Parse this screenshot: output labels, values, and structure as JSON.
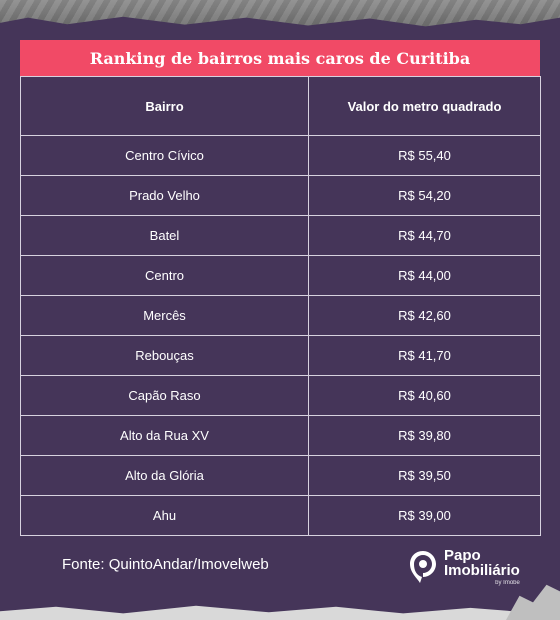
{
  "chart_data": {
    "type": "table",
    "title": "Ranking de bairros mais caros de Curitiba",
    "columns": [
      "Bairro",
      "Valor do metro quadrado"
    ],
    "rows": [
      {
        "bairro": "Centro Cívico",
        "valor": "R$ 55,40"
      },
      {
        "bairro": "Prado Velho",
        "valor": "R$ 54,20"
      },
      {
        "bairro": "Batel",
        "valor": "R$ 44,70"
      },
      {
        "bairro": "Centro",
        "valor": "R$ 44,00"
      },
      {
        "bairro": "Mercês",
        "valor": "R$ 42,60"
      },
      {
        "bairro": "Rebouças",
        "valor": "R$ 41,70"
      },
      {
        "bairro": "Capão Raso",
        "valor": "R$ 40,60"
      },
      {
        "bairro": "Alto da Rua XV",
        "valor": "R$ 39,80"
      },
      {
        "bairro": "Alto da Glória",
        "valor": "R$ 39,50"
      },
      {
        "bairro": "Ahu",
        "valor": "R$ 39,00"
      }
    ]
  },
  "source": "Fonte: QuintoAndar/Imovelweb",
  "logo": {
    "line1": "Papo",
    "line2": "Imobiliário",
    "line3": "by Imobe"
  },
  "colors": {
    "background": "#453559",
    "title_bar": "#f14a66",
    "grid": "#d7d2df",
    "text": "#ffffff"
  }
}
